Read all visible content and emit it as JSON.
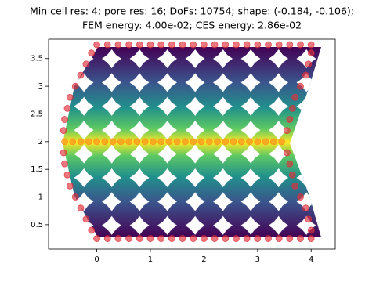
{
  "chart_data": {
    "type": "scatter",
    "title": "Min cell res: 4; pore res: 16; DoFs: 10754; shape: (-0.184, -0.106);",
    "subtitle": "FEM energy: 4.00e-02; CES energy: 2.86e-02",
    "xlim": [
      -0.9,
      4.45
    ],
    "ylim": [
      0.06,
      3.85
    ],
    "xticks": [
      0,
      1,
      2,
      3,
      4
    ],
    "yticks": [
      0.5,
      1.0,
      1.5,
      2.0,
      2.5,
      3.0,
      3.5
    ],
    "series": [
      {
        "color": "#e0303a",
        "x": [
          0,
          0.2,
          0.4,
          0.6,
          0.8,
          1.0,
          1.2,
          1.4,
          1.6,
          1.8,
          2.0,
          2.2,
          2.4,
          2.6,
          2.8,
          3.0,
          3.2,
          3.4,
          3.6,
          3.8,
          4.0,
          0,
          0.2,
          0.4,
          0.6,
          0.8,
          1.0,
          1.2,
          1.4,
          1.6,
          1.8,
          2.0,
          2.2,
          2.4,
          2.6,
          2.8,
          3.0,
          3.2,
          3.4,
          3.6,
          3.8,
          4.0,
          -0.1,
          -0.2,
          -0.3,
          -0.4,
          -0.5,
          -0.55,
          -0.6,
          -0.62,
          -0.62,
          -0.6,
          -0.55,
          -0.5,
          -0.4,
          -0.3,
          -0.2,
          -0.1,
          4.0,
          3.95,
          3.9,
          3.8,
          3.7,
          3.65,
          3.6,
          3.55,
          3.55,
          3.6,
          3.65,
          3.7,
          3.8,
          3.9,
          3.95,
          4.0
        ],
        "values": [
          3.75,
          3.75,
          3.75,
          3.75,
          3.75,
          3.75,
          3.75,
          3.75,
          3.75,
          3.75,
          3.75,
          3.75,
          3.75,
          3.75,
          3.75,
          3.75,
          3.75,
          3.75,
          3.75,
          3.75,
          3.75,
          0.25,
          0.25,
          0.25,
          0.25,
          0.25,
          0.25,
          0.25,
          0.25,
          0.25,
          0.25,
          0.25,
          0.25,
          0.25,
          0.25,
          0.25,
          0.25,
          0.25,
          0.25,
          0.25,
          0.25,
          0.25,
          3.6,
          3.4,
          3.2,
          3.0,
          2.8,
          2.6,
          2.4,
          2.2,
          1.8,
          1.6,
          1.4,
          1.2,
          1.0,
          0.8,
          0.6,
          0.4,
          3.6,
          3.4,
          3.2,
          3.0,
          2.8,
          2.6,
          2.4,
          2.2,
          1.8,
          1.6,
          1.4,
          1.2,
          1.0,
          0.8,
          0.6,
          0.4
        ]
      },
      {
        "color": "#ff8c1a",
        "x": [
          -0.6,
          -0.45,
          -0.3,
          -0.15,
          0,
          0.15,
          0.3,
          0.45,
          0.6,
          0.75,
          0.9,
          1.05,
          1.2,
          1.35,
          1.5,
          1.65,
          1.8,
          1.95,
          2.1,
          2.25,
          2.4,
          2.55,
          2.7,
          2.85,
          3.0,
          3.15,
          3.3,
          3.45
        ],
        "values": [
          2.0,
          2.0,
          2.0,
          2.0,
          2.0,
          2.0,
          2.0,
          2.0,
          2.0,
          2.0,
          2.0,
          2.0,
          2.0,
          2.0,
          2.0,
          2.0,
          2.0,
          2.0,
          2.0,
          2.0,
          2.0,
          2.0,
          2.0,
          2.0,
          2.0,
          2.0,
          2.0,
          2.0
        ]
      }
    ]
  }
}
